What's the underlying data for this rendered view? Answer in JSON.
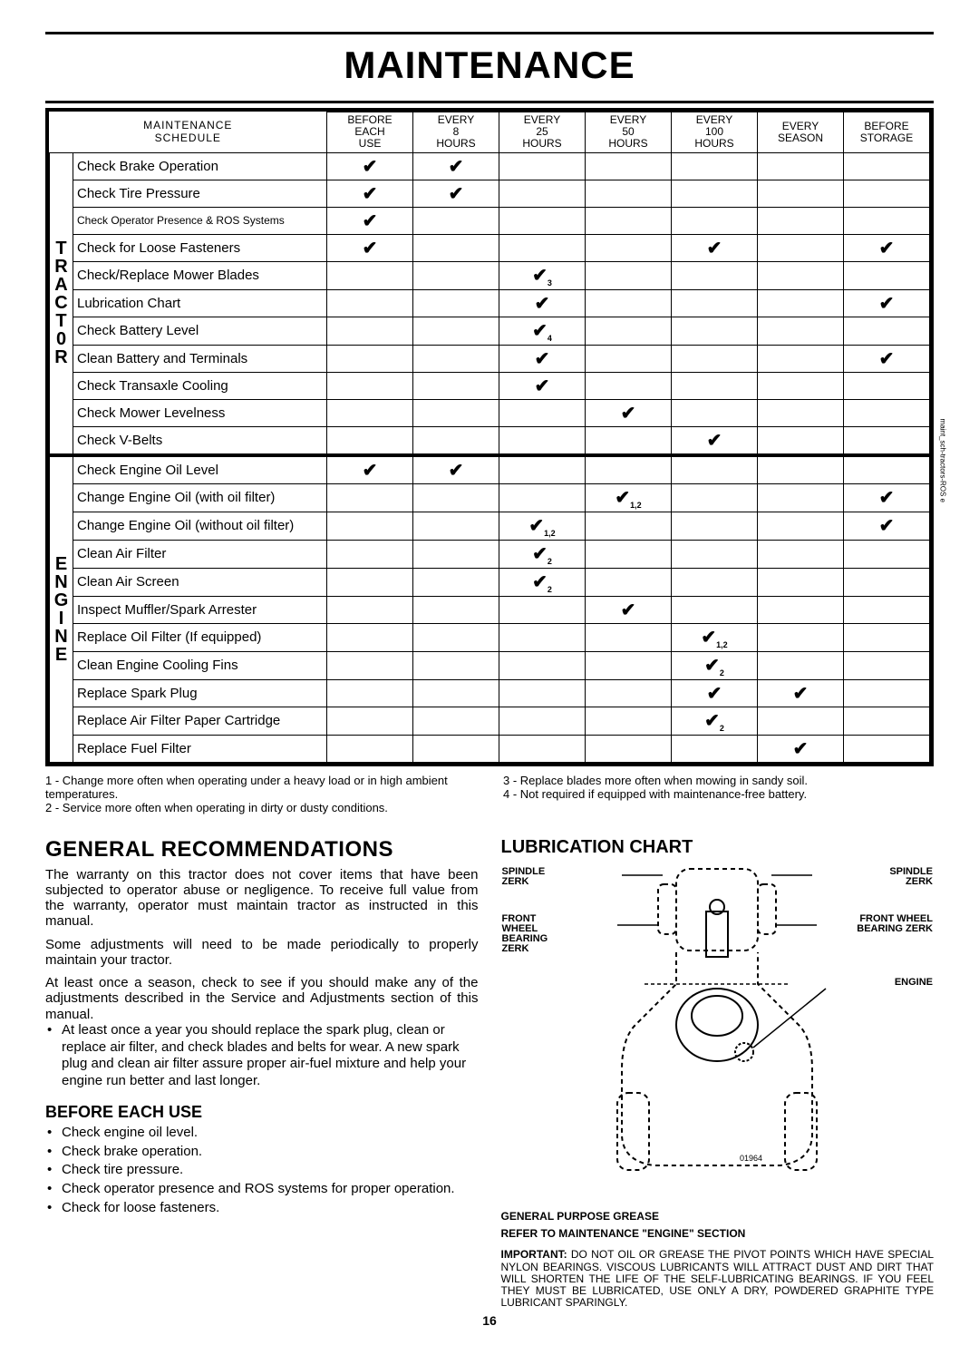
{
  "pageTitle": "MAINTENANCE",
  "scheduleTitle": {
    "line1": "MAINTENANCE",
    "line2": "SCHEDULE"
  },
  "columns": [
    {
      "l1": "BEFORE",
      "l2": "EACH",
      "l3": "USE"
    },
    {
      "l1": "EVERY",
      "l2": "8",
      "l3": "HOURS"
    },
    {
      "l1": "EVERY",
      "l2": "25",
      "l3": "HOURS"
    },
    {
      "l1": "EVERY",
      "l2": "50",
      "l3": "HOURS"
    },
    {
      "l1": "EVERY",
      "l2": "100",
      "l3": "HOURS"
    },
    {
      "l1": "EVERY",
      "l2": "SEASON",
      "l3": ""
    },
    {
      "l1": "BEFORE",
      "l2": "STORAGE",
      "l3": ""
    }
  ],
  "groups": [
    {
      "label": "TRACT0R",
      "rows": [
        {
          "task": "Check Brake Operation",
          "checks": [
            "✔",
            "✔",
            "",
            "",
            "",
            "",
            ""
          ]
        },
        {
          "task": "Check Tire Pressure",
          "checks": [
            "✔",
            "✔",
            "",
            "",
            "",
            "",
            ""
          ]
        },
        {
          "task": "Check Operator Presence & ROS Systems",
          "checks": [
            "✔",
            "",
            "",
            "",
            "",
            "",
            ""
          ],
          "small": true
        },
        {
          "task": "Check for Loose Fasteners",
          "checks": [
            "✔",
            "",
            "",
            "",
            "✔",
            "",
            "✔"
          ]
        },
        {
          "task": "Check/Replace Mower Blades",
          "checks": [
            "",
            "",
            "✔",
            "",
            "",
            "",
            ""
          ],
          "sub": [
            "",
            "",
            "3",
            "",
            "",
            "",
            ""
          ]
        },
        {
          "task": "Lubrication Chart",
          "checks": [
            "",
            "",
            "✔",
            "",
            "",
            "",
            "✔"
          ]
        },
        {
          "task": "Check Battery Level",
          "checks": [
            "",
            "",
            "✔",
            "",
            "",
            "",
            ""
          ],
          "sub": [
            "",
            "",
            "4",
            "",
            "",
            "",
            ""
          ]
        },
        {
          "task": "Clean Battery and Terminals",
          "checks": [
            "",
            "",
            "✔",
            "",
            "",
            "",
            "✔"
          ]
        },
        {
          "task": "Check Transaxle Cooling",
          "checks": [
            "",
            "",
            "✔",
            "",
            "",
            "",
            ""
          ]
        },
        {
          "task": "Check Mower Levelness",
          "checks": [
            "",
            "",
            "",
            "✔",
            "",
            "",
            ""
          ]
        },
        {
          "task": "Check V-Belts",
          "checks": [
            "",
            "",
            "",
            "",
            "✔",
            "",
            ""
          ]
        }
      ]
    },
    {
      "label": "ENGINE",
      "rows": [
        {
          "task": "Check Engine Oil Level",
          "checks": [
            "✔",
            "✔",
            "",
            "",
            "",
            "",
            ""
          ]
        },
        {
          "task": "Change Engine Oil (with oil filter)",
          "checks": [
            "",
            "",
            "",
            "✔",
            "",
            "",
            "✔"
          ],
          "sub": [
            "",
            "",
            "",
            "1,2",
            "",
            "",
            ""
          ]
        },
        {
          "task": "Change Engine Oil (without oil filter)",
          "checks": [
            "",
            "",
            "✔",
            "",
            "",
            "",
            "✔"
          ],
          "sub": [
            "",
            "",
            "1,2",
            "",
            "",
            "",
            ""
          ]
        },
        {
          "task": "Clean Air Filter",
          "checks": [
            "",
            "",
            "✔",
            "",
            "",
            "",
            ""
          ],
          "sub": [
            "",
            "",
            "2",
            "",
            "",
            "",
            ""
          ]
        },
        {
          "task": "Clean Air Screen",
          "checks": [
            "",
            "",
            "✔",
            "",
            "",
            "",
            ""
          ],
          "sub": [
            "",
            "",
            "2",
            "",
            "",
            "",
            ""
          ]
        },
        {
          "task": "Inspect Muffler/Spark Arrester",
          "checks": [
            "",
            "",
            "",
            "✔",
            "",
            "",
            ""
          ]
        },
        {
          "task": "Replace Oil Filter (If equipped)",
          "checks": [
            "",
            "",
            "",
            "",
            "✔",
            "",
            ""
          ],
          "sub": [
            "",
            "",
            "",
            "",
            "1,2",
            "",
            ""
          ]
        },
        {
          "task": "Clean Engine Cooling Fins",
          "checks": [
            "",
            "",
            "",
            "",
            "✔",
            "",
            ""
          ],
          "sub": [
            "",
            "",
            "",
            "",
            "2",
            "",
            ""
          ]
        },
        {
          "task": "Replace Spark Plug",
          "checks": [
            "",
            "",
            "",
            "",
            "✔",
            "✔",
            ""
          ]
        },
        {
          "task": "Replace Air Filter Paper Cartridge",
          "checks": [
            "",
            "",
            "",
            "",
            "✔",
            "",
            ""
          ],
          "sub": [
            "",
            "",
            "",
            "",
            "2",
            "",
            ""
          ]
        },
        {
          "task": "Replace Fuel Filter",
          "checks": [
            "",
            "",
            "",
            "",
            "",
            "✔",
            ""
          ]
        }
      ]
    }
  ],
  "footnotes": {
    "left": [
      "1 - Change more often when operating under a heavy load or in high ambient temperatures.",
      "2 - Service more often when operating in dirty or dusty conditions."
    ],
    "right": [
      "3 - Replace blades more often when mowing in sandy soil.",
      "4 - Not required if equipped with maintenance-free battery."
    ]
  },
  "general": {
    "heading": "GENERAL RECOMMENDATIONS",
    "p1": "The warranty on this tractor does not cover items that have been subjected to operator abuse or negligence. To receive full value from the warranty, operator must maintain tractor as instructed in this manual.",
    "p2": "Some adjustments will need to be made periodically to properly maintain your tractor.",
    "p3": "At least once a season, check to see if you should make any of the adjustments described in the Service and Adjustments section of this manual.",
    "bullet1": "At least once a year you should replace the spark plug, clean or replace air filter, and check blades and belts for wear. A new spark plug and clean air filter assure proper air-fuel mixture and help your engine run better and last longer."
  },
  "beforeUse": {
    "heading": "BEFORE EACH USE",
    "items": [
      "Check engine oil level.",
      "Check brake operation.",
      "Check tire pressure.",
      "Check operator presence and ROS systems for proper operation.",
      "Check for loose fasteners."
    ]
  },
  "lube": {
    "heading": "LUBRICATION CHART",
    "labels": {
      "spindleL": "SPINDLE ZERK",
      "spindleR": "SPINDLE ZERK",
      "frontL": "FRONT WHEEL BEARING ZERK",
      "frontR": "FRONT WHEEL BEARING ZERK",
      "engine": "ENGINE",
      "figNum": "01964"
    },
    "caption1": "GENERAL PURPOSE GREASE",
    "caption2": "REFER TO MAINTENANCE \"ENGINE\" SECTION",
    "important": "IMPORTANT:",
    "importantText": "DO NOT OIL OR GREASE THE PIVOT POINTS WHICH HAVE SPECIAL NYLON BEARINGS. VISCOUS LUBRICANTS WILL ATTRACT DUST AND DIRT THAT WILL SHORTEN THE LIFE OF THE SELF-LUBRICATING BEARINGS. IF YOU FEEL THEY MUST BE LUBRICATED, USE ONLY A DRY, POWDERED GRAPHITE TYPE LUBRICANT SPARINGLY."
  },
  "pageNumber": "16",
  "sideNote": "maint_sch-tractors-ROS e"
}
